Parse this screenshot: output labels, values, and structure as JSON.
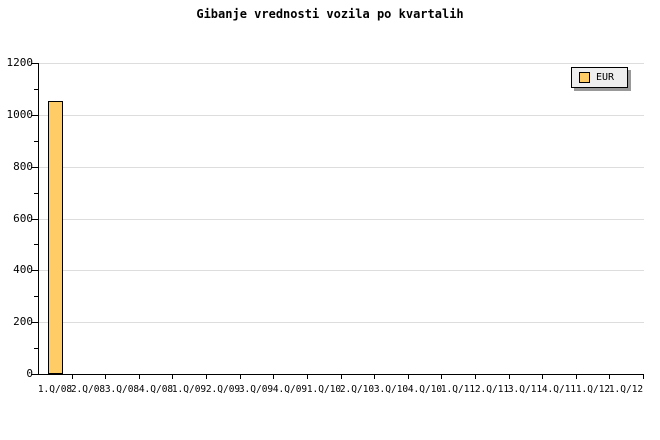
{
  "title": "Gibanje vrednosti vozila po kvartalih",
  "legend": {
    "position": "top-right",
    "items": [
      {
        "label": "EUR",
        "swatch_color": "#FFCC66"
      }
    ]
  },
  "colors": {
    "background": "#FFFFFF",
    "bar_fill": "#FFCC66",
    "bar_border": "#000000",
    "gridline": "#DDDDDD",
    "axis": "#000000",
    "text": "#000000",
    "legend_bg": "#EEEEEE",
    "legend_border": "#000000",
    "legend_shadow": "#999999"
  },
  "chart_data": {
    "type": "bar",
    "title": "Gibanje vrednosti vozila po kvartalih",
    "categories": [
      "1.Q/08",
      "2.Q/08",
      "3.Q/08",
      "4.Q/08",
      "1.Q/09",
      "2.Q/09",
      "3.Q/09",
      "4.Q/09",
      "1.Q/10",
      "2.Q/10",
      "3.Q/10",
      "4.Q/10",
      "1.Q/11",
      "2.Q/11",
      "3.Q/11",
      "4.Q/11",
      "1.Q/12",
      "1.Q/12"
    ],
    "series": [
      {
        "name": "EUR",
        "values": [
          1055,
          null,
          null,
          null,
          null,
          null,
          null,
          null,
          null,
          null,
          null,
          null,
          null,
          null,
          null,
          null,
          null,
          null
        ]
      }
    ],
    "xlabel": "",
    "ylabel": "",
    "ylim": [
      0,
      1200
    ],
    "y_major_step": 200,
    "y_minor_step": 100,
    "y_tick_labels": [
      "0",
      "200",
      "400",
      "600",
      "800",
      "1000",
      "1200"
    ],
    "grid": "horizontal-major",
    "legend_position": "top-right"
  }
}
